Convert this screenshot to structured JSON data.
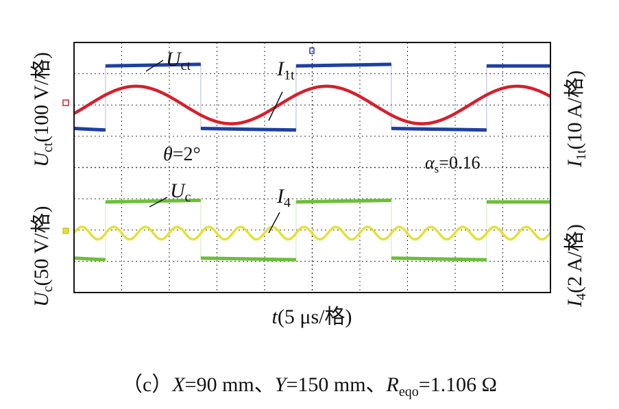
{
  "chart_data": {
    "type": "line",
    "title": "",
    "xlabel": "t(5 μs/格)",
    "x_label_var": "t",
    "x_label_unit": "(5 μs/格)",
    "divisions": {
      "x": 10,
      "y": 8
    },
    "x_range_us": [
      0,
      50
    ],
    "left_axis_labels": [
      {
        "var": "U",
        "sub": "ct",
        "unit": "(100 V/格)"
      },
      {
        "var": "U",
        "sub": "c",
        "unit": "(50 V/格)"
      }
    ],
    "right_axis_labels": [
      {
        "var": "I",
        "sub": "1t",
        "unit": "(10 A/格)"
      },
      {
        "var": "I",
        "sub": "4",
        "unit": "(2 A/格)"
      }
    ],
    "series": [
      {
        "name": "Uct",
        "label_var": "U",
        "label_sub": "ct",
        "color": "#1f3fa0",
        "shape": "square",
        "period_us": 20,
        "phase_us": 3.3,
        "level_high_div": 1.0,
        "level_low_div": -1.0,
        "baseline_div": 2.25,
        "units_per_div": "100 V"
      },
      {
        "name": "I1t",
        "label_var": "I",
        "label_sub": "1t",
        "color": "#d61f2a",
        "shape": "triangle-like",
        "period_us": 20,
        "peak_time_us": 6.5,
        "amplitude_div": 0.6,
        "baseline_div": 2.0,
        "units_per_div": "10 A"
      },
      {
        "name": "Uc",
        "label_var": "U",
        "label_sub": "c",
        "color": "#6cbf3a",
        "shape": "square",
        "period_us": 20,
        "phase_us": 3.3,
        "level_high_div": 0.9,
        "level_low_div": -0.9,
        "baseline_div": -2.0,
        "units_per_div": "50 V"
      },
      {
        "name": "I4",
        "label_var": "I",
        "label_sub": "4",
        "color": "#e6e034",
        "shape": "sinusoid",
        "period_us": 3.33,
        "amplitude_div": 0.2,
        "baseline_div": -2.1,
        "units_per_div": "2 A"
      }
    ],
    "annotations": [
      {
        "id": "theta",
        "var": "θ",
        "text": "=2°"
      },
      {
        "id": "alpha",
        "var": "α",
        "sub": "s",
        "text": "=0.16"
      }
    ]
  },
  "caption": {
    "prefix": "（c）",
    "x_var": "X",
    "x_val": "=90 mm、",
    "y_var": "Y",
    "y_val": "=150 mm、",
    "r_var": "R",
    "r_sub": "eqo",
    "r_val": "=1.106 Ω"
  }
}
